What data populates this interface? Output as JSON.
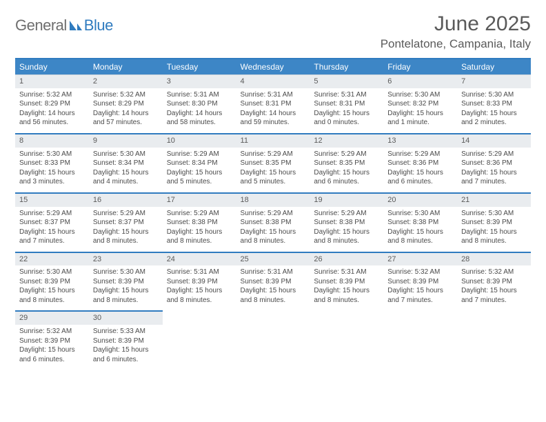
{
  "logo": {
    "part1": "General",
    "part2": "Blue"
  },
  "title": "June 2025",
  "location": "Pontelatone, Campania, Italy",
  "weekdays": [
    "Sunday",
    "Monday",
    "Tuesday",
    "Wednesday",
    "Thursday",
    "Friday",
    "Saturday"
  ],
  "colors": {
    "header_bg": "#3d86c6",
    "accent_border": "#2f7bbf",
    "daynum_bg": "#e9ecef",
    "text": "#4a4a4a",
    "title_text": "#5a5a5a"
  },
  "layout": {
    "cols": 7,
    "rows": 5,
    "first_weekday_index": 0
  },
  "days": [
    {
      "n": 1,
      "sunrise": "5:32 AM",
      "sunset": "8:29 PM",
      "daylight": "14 hours and 56 minutes."
    },
    {
      "n": 2,
      "sunrise": "5:32 AM",
      "sunset": "8:29 PM",
      "daylight": "14 hours and 57 minutes."
    },
    {
      "n": 3,
      "sunrise": "5:31 AM",
      "sunset": "8:30 PM",
      "daylight": "14 hours and 58 minutes."
    },
    {
      "n": 4,
      "sunrise": "5:31 AM",
      "sunset": "8:31 PM",
      "daylight": "14 hours and 59 minutes."
    },
    {
      "n": 5,
      "sunrise": "5:31 AM",
      "sunset": "8:31 PM",
      "daylight": "15 hours and 0 minutes."
    },
    {
      "n": 6,
      "sunrise": "5:30 AM",
      "sunset": "8:32 PM",
      "daylight": "15 hours and 1 minute."
    },
    {
      "n": 7,
      "sunrise": "5:30 AM",
      "sunset": "8:33 PM",
      "daylight": "15 hours and 2 minutes."
    },
    {
      "n": 8,
      "sunrise": "5:30 AM",
      "sunset": "8:33 PM",
      "daylight": "15 hours and 3 minutes."
    },
    {
      "n": 9,
      "sunrise": "5:30 AM",
      "sunset": "8:34 PM",
      "daylight": "15 hours and 4 minutes."
    },
    {
      "n": 10,
      "sunrise": "5:29 AM",
      "sunset": "8:34 PM",
      "daylight": "15 hours and 5 minutes."
    },
    {
      "n": 11,
      "sunrise": "5:29 AM",
      "sunset": "8:35 PM",
      "daylight": "15 hours and 5 minutes."
    },
    {
      "n": 12,
      "sunrise": "5:29 AM",
      "sunset": "8:35 PM",
      "daylight": "15 hours and 6 minutes."
    },
    {
      "n": 13,
      "sunrise": "5:29 AM",
      "sunset": "8:36 PM",
      "daylight": "15 hours and 6 minutes."
    },
    {
      "n": 14,
      "sunrise": "5:29 AM",
      "sunset": "8:36 PM",
      "daylight": "15 hours and 7 minutes."
    },
    {
      "n": 15,
      "sunrise": "5:29 AM",
      "sunset": "8:37 PM",
      "daylight": "15 hours and 7 minutes."
    },
    {
      "n": 16,
      "sunrise": "5:29 AM",
      "sunset": "8:37 PM",
      "daylight": "15 hours and 8 minutes."
    },
    {
      "n": 17,
      "sunrise": "5:29 AM",
      "sunset": "8:38 PM",
      "daylight": "15 hours and 8 minutes."
    },
    {
      "n": 18,
      "sunrise": "5:29 AM",
      "sunset": "8:38 PM",
      "daylight": "15 hours and 8 minutes."
    },
    {
      "n": 19,
      "sunrise": "5:29 AM",
      "sunset": "8:38 PM",
      "daylight": "15 hours and 8 minutes."
    },
    {
      "n": 20,
      "sunrise": "5:30 AM",
      "sunset": "8:38 PM",
      "daylight": "15 hours and 8 minutes."
    },
    {
      "n": 21,
      "sunrise": "5:30 AM",
      "sunset": "8:39 PM",
      "daylight": "15 hours and 8 minutes."
    },
    {
      "n": 22,
      "sunrise": "5:30 AM",
      "sunset": "8:39 PM",
      "daylight": "15 hours and 8 minutes."
    },
    {
      "n": 23,
      "sunrise": "5:30 AM",
      "sunset": "8:39 PM",
      "daylight": "15 hours and 8 minutes."
    },
    {
      "n": 24,
      "sunrise": "5:31 AM",
      "sunset": "8:39 PM",
      "daylight": "15 hours and 8 minutes."
    },
    {
      "n": 25,
      "sunrise": "5:31 AM",
      "sunset": "8:39 PM",
      "daylight": "15 hours and 8 minutes."
    },
    {
      "n": 26,
      "sunrise": "5:31 AM",
      "sunset": "8:39 PM",
      "daylight": "15 hours and 8 minutes."
    },
    {
      "n": 27,
      "sunrise": "5:32 AM",
      "sunset": "8:39 PM",
      "daylight": "15 hours and 7 minutes."
    },
    {
      "n": 28,
      "sunrise": "5:32 AM",
      "sunset": "8:39 PM",
      "daylight": "15 hours and 7 minutes."
    },
    {
      "n": 29,
      "sunrise": "5:32 AM",
      "sunset": "8:39 PM",
      "daylight": "15 hours and 6 minutes."
    },
    {
      "n": 30,
      "sunrise": "5:33 AM",
      "sunset": "8:39 PM",
      "daylight": "15 hours and 6 minutes."
    }
  ],
  "labels": {
    "sunrise": "Sunrise:",
    "sunset": "Sunset:",
    "daylight": "Daylight:"
  }
}
